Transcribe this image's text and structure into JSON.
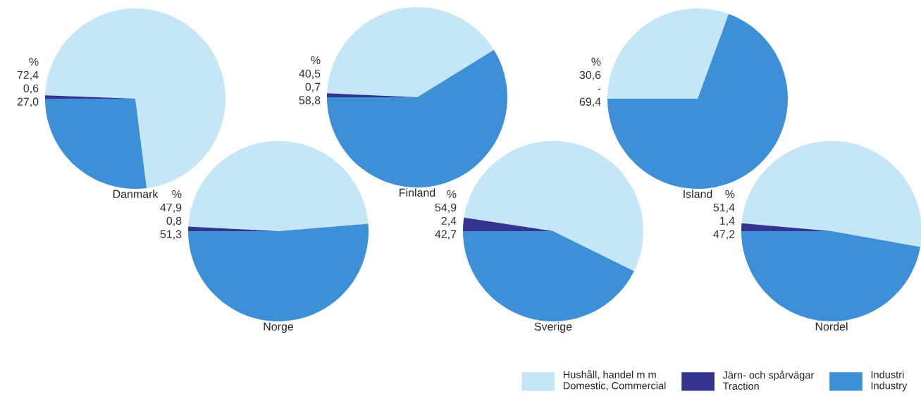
{
  "chart_data": [
    {
      "type": "pie",
      "title": "Danmark",
      "annotations": [
        "%"
      ],
      "categories": [
        "Hushåll, handel m m\nDomestic, Commercial",
        "Järn- och spårvägar\nTraction",
        "Industri\nIndustry"
      ],
      "values": [
        72.4,
        0.6,
        27.0
      ],
      "value_labels": [
        "72,4",
        "0,6",
        "27,0"
      ],
      "colors": [
        "#c4e6f7",
        "#34348f",
        "#3d8fd6"
      ],
      "legend": "bottom right"
    },
    {
      "type": "pie",
      "title": "Finland",
      "annotations": [
        "%"
      ],
      "categories": [
        null,
        null,
        null
      ],
      "values": [
        40.5,
        0.7,
        58.8
      ],
      "value_labels": [
        "40,5",
        "0,7",
        "58,8"
      ],
      "colors": [
        "#c4e6f7",
        "#34348f",
        "#3d8fd6"
      ]
    },
    {
      "type": "pie",
      "title": "Island",
      "annotations": [
        "%"
      ],
      "categories": [
        null,
        null,
        null
      ],
      "values": [
        30.6,
        0,
        69.4
      ],
      "value_labels": [
        "30,6",
        "-",
        "69,4"
      ],
      "colors": [
        "#c4e6f7",
        "#34348f",
        "#3d8fd6"
      ]
    },
    {
      "type": "pie",
      "title": "Norge",
      "annotations": [
        "%"
      ],
      "categories": [
        null,
        null,
        null
      ],
      "values": [
        47.9,
        0.8,
        51.3
      ],
      "value_labels": [
        "47,9",
        "0,8",
        "51,3"
      ],
      "colors": [
        "#c4e6f7",
        "#34348f",
        "#3d8fd6"
      ]
    },
    {
      "type": "pie",
      "title": "Sverige",
      "annotations": [
        "%"
      ],
      "categories": [
        null,
        null,
        null
      ],
      "values": [
        54.9,
        2.4,
        42.7
      ],
      "value_labels": [
        "54,9",
        "2,4",
        "42,7"
      ],
      "colors": [
        "#c4e6f7",
        "#34348f",
        "#3d8fd6"
      ]
    },
    {
      "type": "pie",
      "title": "Nordel",
      "annotations": [
        "%"
      ],
      "categories": [
        null,
        null,
        null
      ],
      "values": [
        51.4,
        1.4,
        47.2
      ],
      "value_labels": [
        "51,4",
        "1,4",
        "47,2"
      ],
      "colors": [
        "#c4e6f7",
        "#34348f",
        "#3d8fd6"
      ]
    }
  ]
}
